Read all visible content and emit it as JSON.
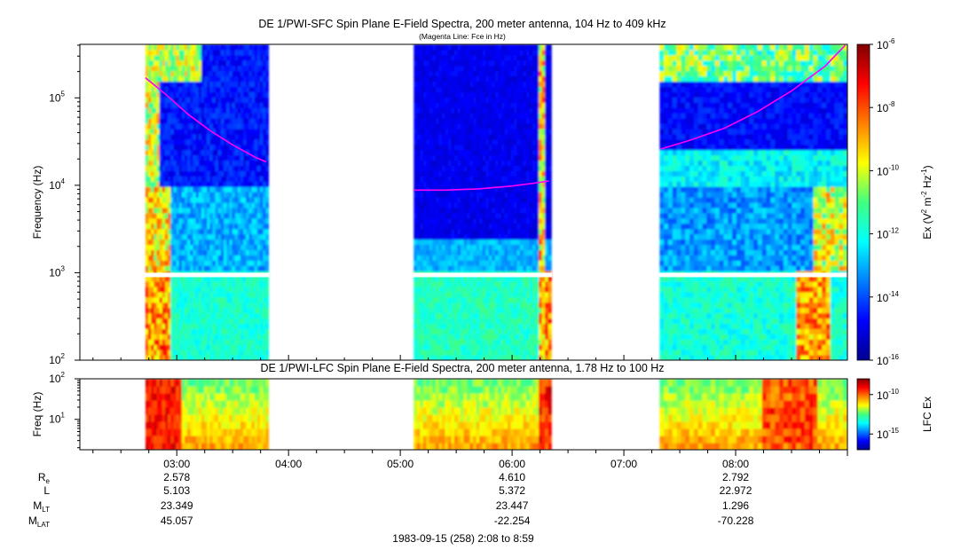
{
  "chart_data": [
    {
      "type": "heatmap",
      "title": "DE 1/PWI-SFC  Spin Plane E-Field Spectra, 200 meter antenna, 104 Hz to 409 kHz",
      "subtitle": "(Magenta Line: Fce in Hz)",
      "ylabel": "Frequency (Hz)",
      "yscale": "log",
      "ylim": [
        100,
        409000
      ],
      "yticks": [
        {
          "value": 100,
          "base": "10",
          "exp": "2"
        },
        {
          "value": 1000,
          "base": "10",
          "exp": "3"
        },
        {
          "value": 10000,
          "base": "10",
          "exp": "4"
        },
        {
          "value": 100000,
          "base": "10",
          "exp": "5"
        }
      ],
      "data_segments_hours": [
        [
          2.72,
          3.82
        ],
        [
          5.12,
          6.35
        ],
        [
          7.32,
          9.0
        ]
      ],
      "fce_series": [
        {
          "name": "Fce segment 1",
          "x": [
            2.72,
            2.9,
            3.1,
            3.3,
            3.5,
            3.7,
            3.8
          ],
          "y": [
            170000,
            110000,
            65000,
            42000,
            29000,
            21000,
            18500
          ]
        },
        {
          "name": "Fce segment 2",
          "x": [
            5.12,
            5.4,
            5.7,
            6.0,
            6.2,
            6.33
          ],
          "y": [
            8800,
            8800,
            9100,
            9800,
            10600,
            11200
          ]
        },
        {
          "name": "Fce segment 3",
          "x": [
            7.33,
            7.6,
            7.9,
            8.2,
            8.5,
            8.8,
            8.98
          ],
          "y": [
            26000,
            33000,
            45000,
            70000,
            120000,
            230000,
            400000
          ]
        }
      ],
      "colorbar": {
        "label": "Ex (V",
        "label_sup1": "2",
        "label_mid": " m",
        "label_sup2": "-2",
        "label_mid2": " Hz",
        "label_sup3": "-1",
        "label_end": ")",
        "range": [
          1e-16,
          1e-06
        ],
        "ticks": [
          {
            "value": 1e-06,
            "base": "10",
            "exp": "-6"
          },
          {
            "value": 1e-08,
            "base": "10",
            "exp": "-8"
          },
          {
            "value": 1e-10,
            "base": "10",
            "exp": "-10"
          },
          {
            "value": 1e-12,
            "base": "10",
            "exp": "-12"
          },
          {
            "value": 1e-14,
            "base": "10",
            "exp": "-14"
          },
          {
            "value": 1e-16,
            "base": "10",
            "exp": "-16"
          }
        ]
      }
    },
    {
      "type": "heatmap",
      "title": "DE 1/PWI-LFC  Spin Plane E-Field Spectra, 200 meter antenna, 1.78 Hz to 100 Hz",
      "ylabel": "Freq (Hz)",
      "yscale": "log",
      "ylim": [
        1.78,
        100
      ],
      "yticks": [
        {
          "value": 10,
          "base": "10",
          "exp": "1"
        },
        {
          "value": 100,
          "base": "10",
          "exp": "2"
        }
      ],
      "colorbar": {
        "label": "LFC Ex",
        "range": [
          1e-17,
          1e-08
        ],
        "ticks": [
          {
            "value": 1e-10,
            "base": "10",
            "exp": "-10"
          },
          {
            "value": 1e-15,
            "base": "10",
            "exp": "-15"
          }
        ]
      }
    }
  ],
  "time_axis": {
    "range_hours": [
      2.133,
      9.0
    ],
    "tick_labels": [
      {
        "hour": 3,
        "label": "03:00"
      },
      {
        "hour": 4,
        "label": "04:00"
      },
      {
        "hour": 5,
        "label": "05:00"
      },
      {
        "hour": 6,
        "label": "06:00"
      },
      {
        "hour": 7,
        "label": "07:00"
      },
      {
        "hour": 8,
        "label": "08:00"
      }
    ]
  },
  "ephemeris": {
    "rows": [
      {
        "label": "R",
        "sub": "e",
        "values": [
          {
            "hour": 3,
            "v": "2.578"
          },
          {
            "hour": 6,
            "v": "4.610"
          },
          {
            "hour": 8,
            "v": "2.792"
          }
        ]
      },
      {
        "label": "L",
        "sub": "",
        "values": [
          {
            "hour": 3,
            "v": "5.103"
          },
          {
            "hour": 6,
            "v": "5.372"
          },
          {
            "hour": 8,
            "v": "22.972"
          }
        ]
      },
      {
        "label": "M",
        "sub": "LT",
        "values": [
          {
            "hour": 3,
            "v": "23.349"
          },
          {
            "hour": 6,
            "v": "23.447"
          },
          {
            "hour": 8,
            "v": "1.296"
          }
        ]
      },
      {
        "label": "M",
        "sub": "LAT",
        "values": [
          {
            "hour": 3,
            "v": "45.057"
          },
          {
            "hour": 6,
            "v": "-22.254"
          },
          {
            "hour": 8,
            "v": "-70.228"
          }
        ]
      }
    ]
  },
  "footer": "1983-09-15 (258) 2:08 to 8:59",
  "colors": {
    "fce_line": "#ff00ff",
    "background": "#ffffff"
  }
}
